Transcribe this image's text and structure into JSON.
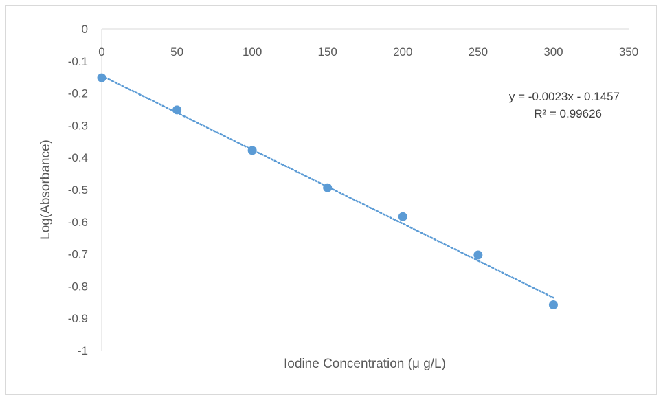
{
  "chart_data": {
    "type": "scatter",
    "xlabel": "Iodine Concentration (μ g/L)",
    "ylabel": "Log(Absorbance)",
    "xlim": [
      0,
      350
    ],
    "ylim": [
      -1,
      0
    ],
    "x_ticks": [
      "0",
      "50",
      "100",
      "150",
      "200",
      "250",
      "300",
      "350"
    ],
    "y_ticks": [
      "0",
      "-0.1",
      "-0.2",
      "-0.3",
      "-0.4",
      "-0.5",
      "-0.6",
      "-0.7",
      "-0.8",
      "-0.9",
      "-1"
    ],
    "series": [
      {
        "x": [
          0,
          50,
          100,
          150,
          200,
          250,
          300
        ],
        "y": [
          -0.152,
          -0.252,
          -0.378,
          -0.494,
          -0.584,
          -0.703,
          -0.858
        ],
        "color": "#5b9bd5"
      }
    ],
    "trendline": {
      "type": "linear",
      "slope": -0.0023,
      "intercept": -0.1457,
      "x_range": [
        0,
        300
      ],
      "style": "dotted",
      "color": "#5b9bd5"
    },
    "annotations": {
      "equation": "y = -0.0023x - 0.1457",
      "r_squared": "R² = 0.99626"
    },
    "grid": false,
    "legend": "none"
  }
}
